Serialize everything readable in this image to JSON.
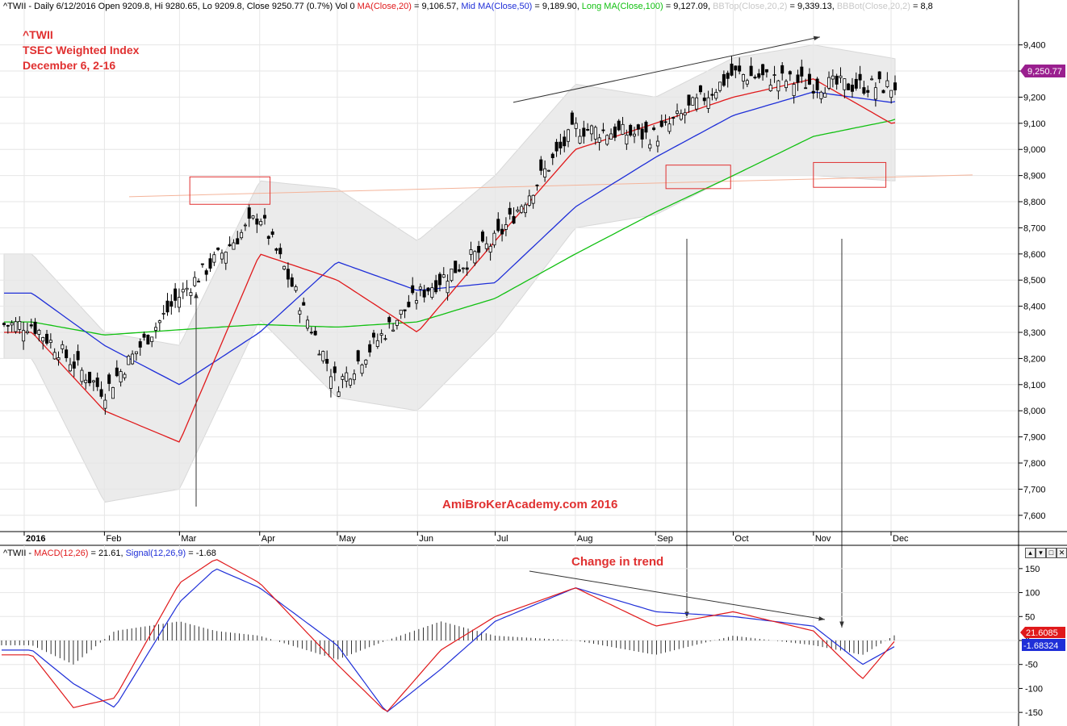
{
  "price_header": {
    "p1": "^TWII - Daily 6/12/2016 Open 9209.8, Hi 9280.65, Lo 9209.8, Close 9250.77 (0.7%) Vol 0",
    "p2": "MA(Close,20)",
    "p3": " = 9,106.57,",
    "p4": "Mid MA(Close,50)",
    "p5": " = 9,189.90,",
    "p6": "Long MA(Close,100)",
    "p7": " = 9,127.09,",
    "p8": "BBTop(Close,20,2)",
    "p9": " = 9,339.13,",
    "p10": "BBBot(Close,20,2)",
    "p11": " = 8,8"
  },
  "macd_header": {
    "p1": "^TWII - ",
    "p2": "MACD(12,26)",
    "p3": " = 21.61, ",
    "p4": "Signal(12,26,9)",
    "p5": " = -1.68"
  },
  "annotations": {
    "ticker": "^TWII",
    "name": "TSEC Weighted Index",
    "date": "December 6, 2-16",
    "watermark": "AmiBroKerAcademy.com  2016",
    "trend_note": "Change in trend"
  },
  "price_badge": "9,250.77",
  "macd_badge": "21.6085",
  "signal_badge": "-1.68324",
  "panel_controls": [
    "▴",
    "▾",
    "□",
    "✕"
  ],
  "colors": {
    "ma20": "#e0191b",
    "ma50": "#1f2fd8",
    "ma100": "#10c010",
    "band": "#ebebeb",
    "annot_red": "#e03030",
    "badge_price": "#9a1f8f",
    "badge_macd": "#e0191b",
    "badge_signal": "#1f2fd8"
  },
  "chart_data": [
    {
      "type": "candlestick",
      "title": "^TWII",
      "x": [
        "2016-01-04",
        "2016-02-01",
        "2016-03-01",
        "2016-04-01",
        "2016-05-01",
        "2016-06-01",
        "2016-07-01",
        "2016-08-01",
        "2016-09-01",
        "2016-10-01",
        "2016-11-01",
        "2016-12-01",
        "2016-12-06"
      ],
      "x_tick_labels": [
        "2016",
        "Feb",
        "Mar",
        "Apr",
        "May",
        "Jun",
        "Jul",
        "Aug",
        "Sep",
        "Oct",
        "Nov",
        "Dec"
      ],
      "x_tick_dates": [
        "2016-01-01",
        "2016-02-01",
        "2016-03-01",
        "2016-04-01",
        "2016-05-01",
        "2016-06-01",
        "2016-07-01",
        "2016-08-01",
        "2016-09-01",
        "2016-10-01",
        "2016-11-01",
        "2016-12-01"
      ],
      "close": [
        8330,
        8070,
        8440,
        8750,
        8100,
        8440,
        8650,
        9080,
        9050,
        9290,
        9250,
        9240,
        9250.77
      ],
      "y_ticks": [
        7600,
        7700,
        7800,
        7900,
        8000,
        8100,
        8200,
        8300,
        8400,
        8500,
        8600,
        8700,
        8800,
        8900,
        9000,
        9100,
        9200,
        9300,
        9400
      ],
      "ylim": [
        7550,
        9510
      ],
      "series": [
        {
          "name": "MA(Close,20)",
          "values": [
            8300,
            8000,
            7880,
            8600,
            8500,
            8300,
            8650,
            9000,
            9100,
            9200,
            9270,
            9100,
            9106.57
          ]
        },
        {
          "name": "Mid MA(Close,50)",
          "values": [
            8450,
            8250,
            8100,
            8300,
            8570,
            8460,
            8490,
            8780,
            8970,
            9130,
            9220,
            9180,
            9189.9
          ]
        },
        {
          "name": "Long MA(Close,100)",
          "values": [
            8340,
            8290,
            8310,
            8330,
            8320,
            8340,
            8430,
            8600,
            8760,
            8900,
            9050,
            9110,
            9127.09
          ]
        },
        {
          "name": "BBTop(Close,20,2)",
          "values": [
            8600,
            8300,
            8250,
            8880,
            8850,
            8650,
            8900,
            9250,
            9200,
            9350,
            9400,
            9350,
            9339.13
          ]
        },
        {
          "name": "BBBot(Close,20,2)",
          "values": [
            8200,
            7650,
            7700,
            8350,
            8050,
            8000,
            8300,
            8700,
            8750,
            8900,
            8900,
            8880,
            8880
          ]
        }
      ],
      "annotation_boxes": [
        {
          "date_from": "2016-03-05",
          "date_to": "2016-04-05",
          "y_from": 8790,
          "y_to": 8895
        },
        {
          "date_from": "2016-09-05",
          "date_to": "2016-09-30",
          "y_from": 8850,
          "y_to": 8940
        },
        {
          "date_from": "2016-11-01",
          "date_to": "2016-11-29",
          "y_from": 8855,
          "y_to": 8950
        }
      ],
      "trend_lines": [
        {
          "from": [
            "2016-07-08",
            9180
          ],
          "to": [
            "2016-11-01",
            9430
          ]
        },
        {
          "from": [
            "2016-01-31",
            8850
          ],
          "to": [
            "2016-12-31",
            8890
          ]
        }
      ]
    },
    {
      "type": "line",
      "title": "MACD",
      "x": [
        "2016-01-04",
        "2016-01-20",
        "2016-02-05",
        "2016-03-01",
        "2016-03-15",
        "2016-04-01",
        "2016-05-01",
        "2016-05-20",
        "2016-06-10",
        "2016-07-01",
        "2016-08-01",
        "2016-09-01",
        "2016-10-01",
        "2016-11-01",
        "2016-11-20",
        "2016-12-06"
      ],
      "y_ticks": [
        -150,
        -100,
        -50,
        0,
        50,
        100,
        150
      ],
      "ylim": [
        -175,
        175
      ],
      "series": [
        {
          "name": "MACD(12,26)",
          "values": [
            -30,
            -140,
            -120,
            120,
            170,
            120,
            -50,
            -150,
            -20,
            50,
            110,
            30,
            60,
            20,
            -80,
            21.61
          ]
        },
        {
          "name": "Signal(12,26,9)",
          "values": [
            -20,
            -90,
            -140,
            80,
            150,
            110,
            -10,
            -150,
            -60,
            40,
            110,
            60,
            50,
            30,
            -50,
            -1.68
          ]
        }
      ]
    }
  ]
}
